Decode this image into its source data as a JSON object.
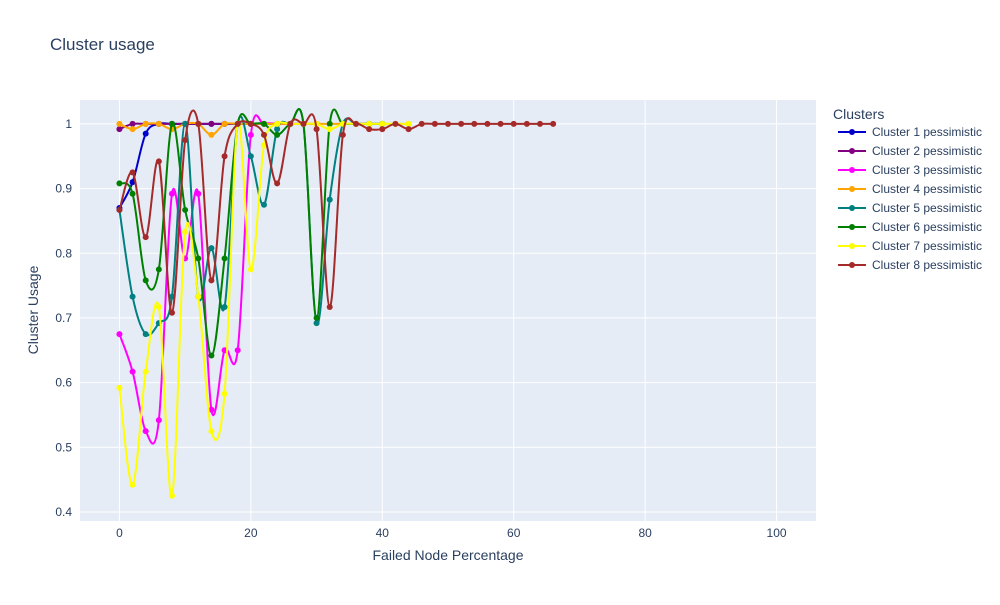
{
  "chart_data": {
    "type": "line",
    "title": "Cluster usage",
    "x_label": "Failed Node Percentage",
    "y_label": "Cluster Usage",
    "legend_title": "Clusters",
    "legend": "right",
    "grid": true,
    "spline": true,
    "xlim": [
      -6,
      106
    ],
    "xticks": [
      0,
      20,
      40,
      60,
      80,
      100
    ],
    "ylim": [
      0.386,
      1.037
    ],
    "yticks": [
      0.4,
      0.5,
      0.6,
      0.7,
      0.8,
      0.9,
      1
    ],
    "series": [
      {
        "name": "Cluster 1 pessimistic",
        "color": "#0000cd",
        "x": [
          0,
          2,
          4,
          6,
          8,
          10,
          12,
          14,
          16,
          18,
          20
        ],
        "values": [
          0.87,
          0.91,
          0.985,
          1,
          1,
          1,
          1,
          1,
          1,
          1,
          1
        ]
      },
      {
        "name": "Cluster 2 pessimistic",
        "color": "#800080",
        "x": [
          0,
          2,
          4,
          6,
          8,
          10,
          12,
          14,
          16,
          18,
          20,
          22,
          24,
          26,
          28,
          30
        ],
        "values": [
          0.992,
          1,
          1,
          1,
          1,
          1,
          1,
          1,
          1,
          1,
          1,
          1,
          1,
          1,
          1,
          1
        ]
      },
      {
        "name": "Cluster 3 pessimistic",
        "color": "#ff00ff",
        "x": [
          0,
          2,
          4,
          6,
          8,
          10,
          12,
          14,
          16,
          18,
          20,
          22,
          24,
          26,
          28,
          30
        ],
        "values": [
          0.675,
          0.617,
          0.525,
          0.542,
          0.892,
          0.792,
          0.892,
          0.558,
          0.65,
          0.65,
          0.983,
          1,
          1,
          1,
          1,
          1
        ]
      },
      {
        "name": "Cluster 4 pessimistic",
        "color": "#ffa500",
        "x": [
          0,
          2,
          4,
          6,
          8,
          10,
          12,
          14,
          16,
          18,
          20,
          22,
          24,
          26,
          28,
          30,
          32,
          34,
          36,
          38,
          40,
          42,
          44
        ],
        "values": [
          1,
          0.992,
          1,
          1,
          0.992,
          1,
          1,
          0.983,
          1,
          1,
          1,
          1,
          1,
          1,
          1,
          1,
          1,
          1,
          1,
          1,
          1,
          1,
          1
        ]
      },
      {
        "name": "Cluster 5 pessimistic",
        "color": "#008080",
        "x": [
          0,
          2,
          4,
          6,
          8,
          10,
          12,
          14,
          16,
          18,
          20,
          22,
          24,
          26,
          28,
          30,
          32,
          34,
          36,
          38,
          40
        ],
        "values": [
          0.867,
          0.733,
          0.675,
          0.692,
          0.733,
          1,
          0.733,
          0.808,
          0.717,
          1,
          0.95,
          0.875,
          0.992,
          1,
          1,
          0.692,
          0.883,
          1,
          1,
          1,
          1
        ]
      },
      {
        "name": "Cluster 6 pessimistic",
        "color": "#008000",
        "x": [
          0,
          2,
          4,
          6,
          8,
          10,
          12,
          14,
          16,
          18,
          20,
          22,
          24,
          26,
          28,
          30,
          32,
          34,
          36,
          38,
          40
        ],
        "values": [
          0.908,
          0.892,
          0.758,
          0.775,
          1,
          0.867,
          0.792,
          0.642,
          0.792,
          1,
          1,
          1,
          0.983,
          1,
          1,
          0.7,
          1,
          1,
          1,
          1,
          1
        ]
      },
      {
        "name": "Cluster 7 pessimistic",
        "color": "#ffff00",
        "x": [
          0,
          2,
          4,
          6,
          8,
          10,
          12,
          14,
          16,
          18,
          20,
          22,
          24,
          26,
          28,
          30,
          32,
          34,
          36,
          38,
          40,
          42,
          44
        ],
        "values": [
          0.592,
          0.442,
          0.617,
          0.717,
          0.425,
          0.833,
          0.733,
          0.525,
          0.583,
          1,
          0.775,
          0.967,
          1,
          1,
          1,
          1,
          0.992,
          1,
          1,
          1,
          1,
          1,
          1
        ]
      },
      {
        "name": "Cluster 8 pessimistic",
        "color": "#a52a2a",
        "x": [
          0,
          2,
          4,
          6,
          8,
          10,
          12,
          14,
          16,
          18,
          20,
          22,
          24,
          26,
          28,
          30,
          32,
          34,
          36,
          38,
          40,
          42,
          44,
          46,
          48,
          50,
          52,
          54,
          56,
          58,
          60,
          62,
          64,
          66
        ],
        "values": [
          0.867,
          0.925,
          0.825,
          0.942,
          0.708,
          0.975,
          1,
          0.758,
          0.95,
          1,
          1,
          0.983,
          0.908,
          1,
          1,
          0.992,
          0.717,
          0.983,
          1,
          0.992,
          0.992,
          1,
          0.992,
          1,
          1,
          1,
          1,
          1,
          1,
          1,
          1,
          1,
          1,
          1
        ]
      }
    ]
  }
}
